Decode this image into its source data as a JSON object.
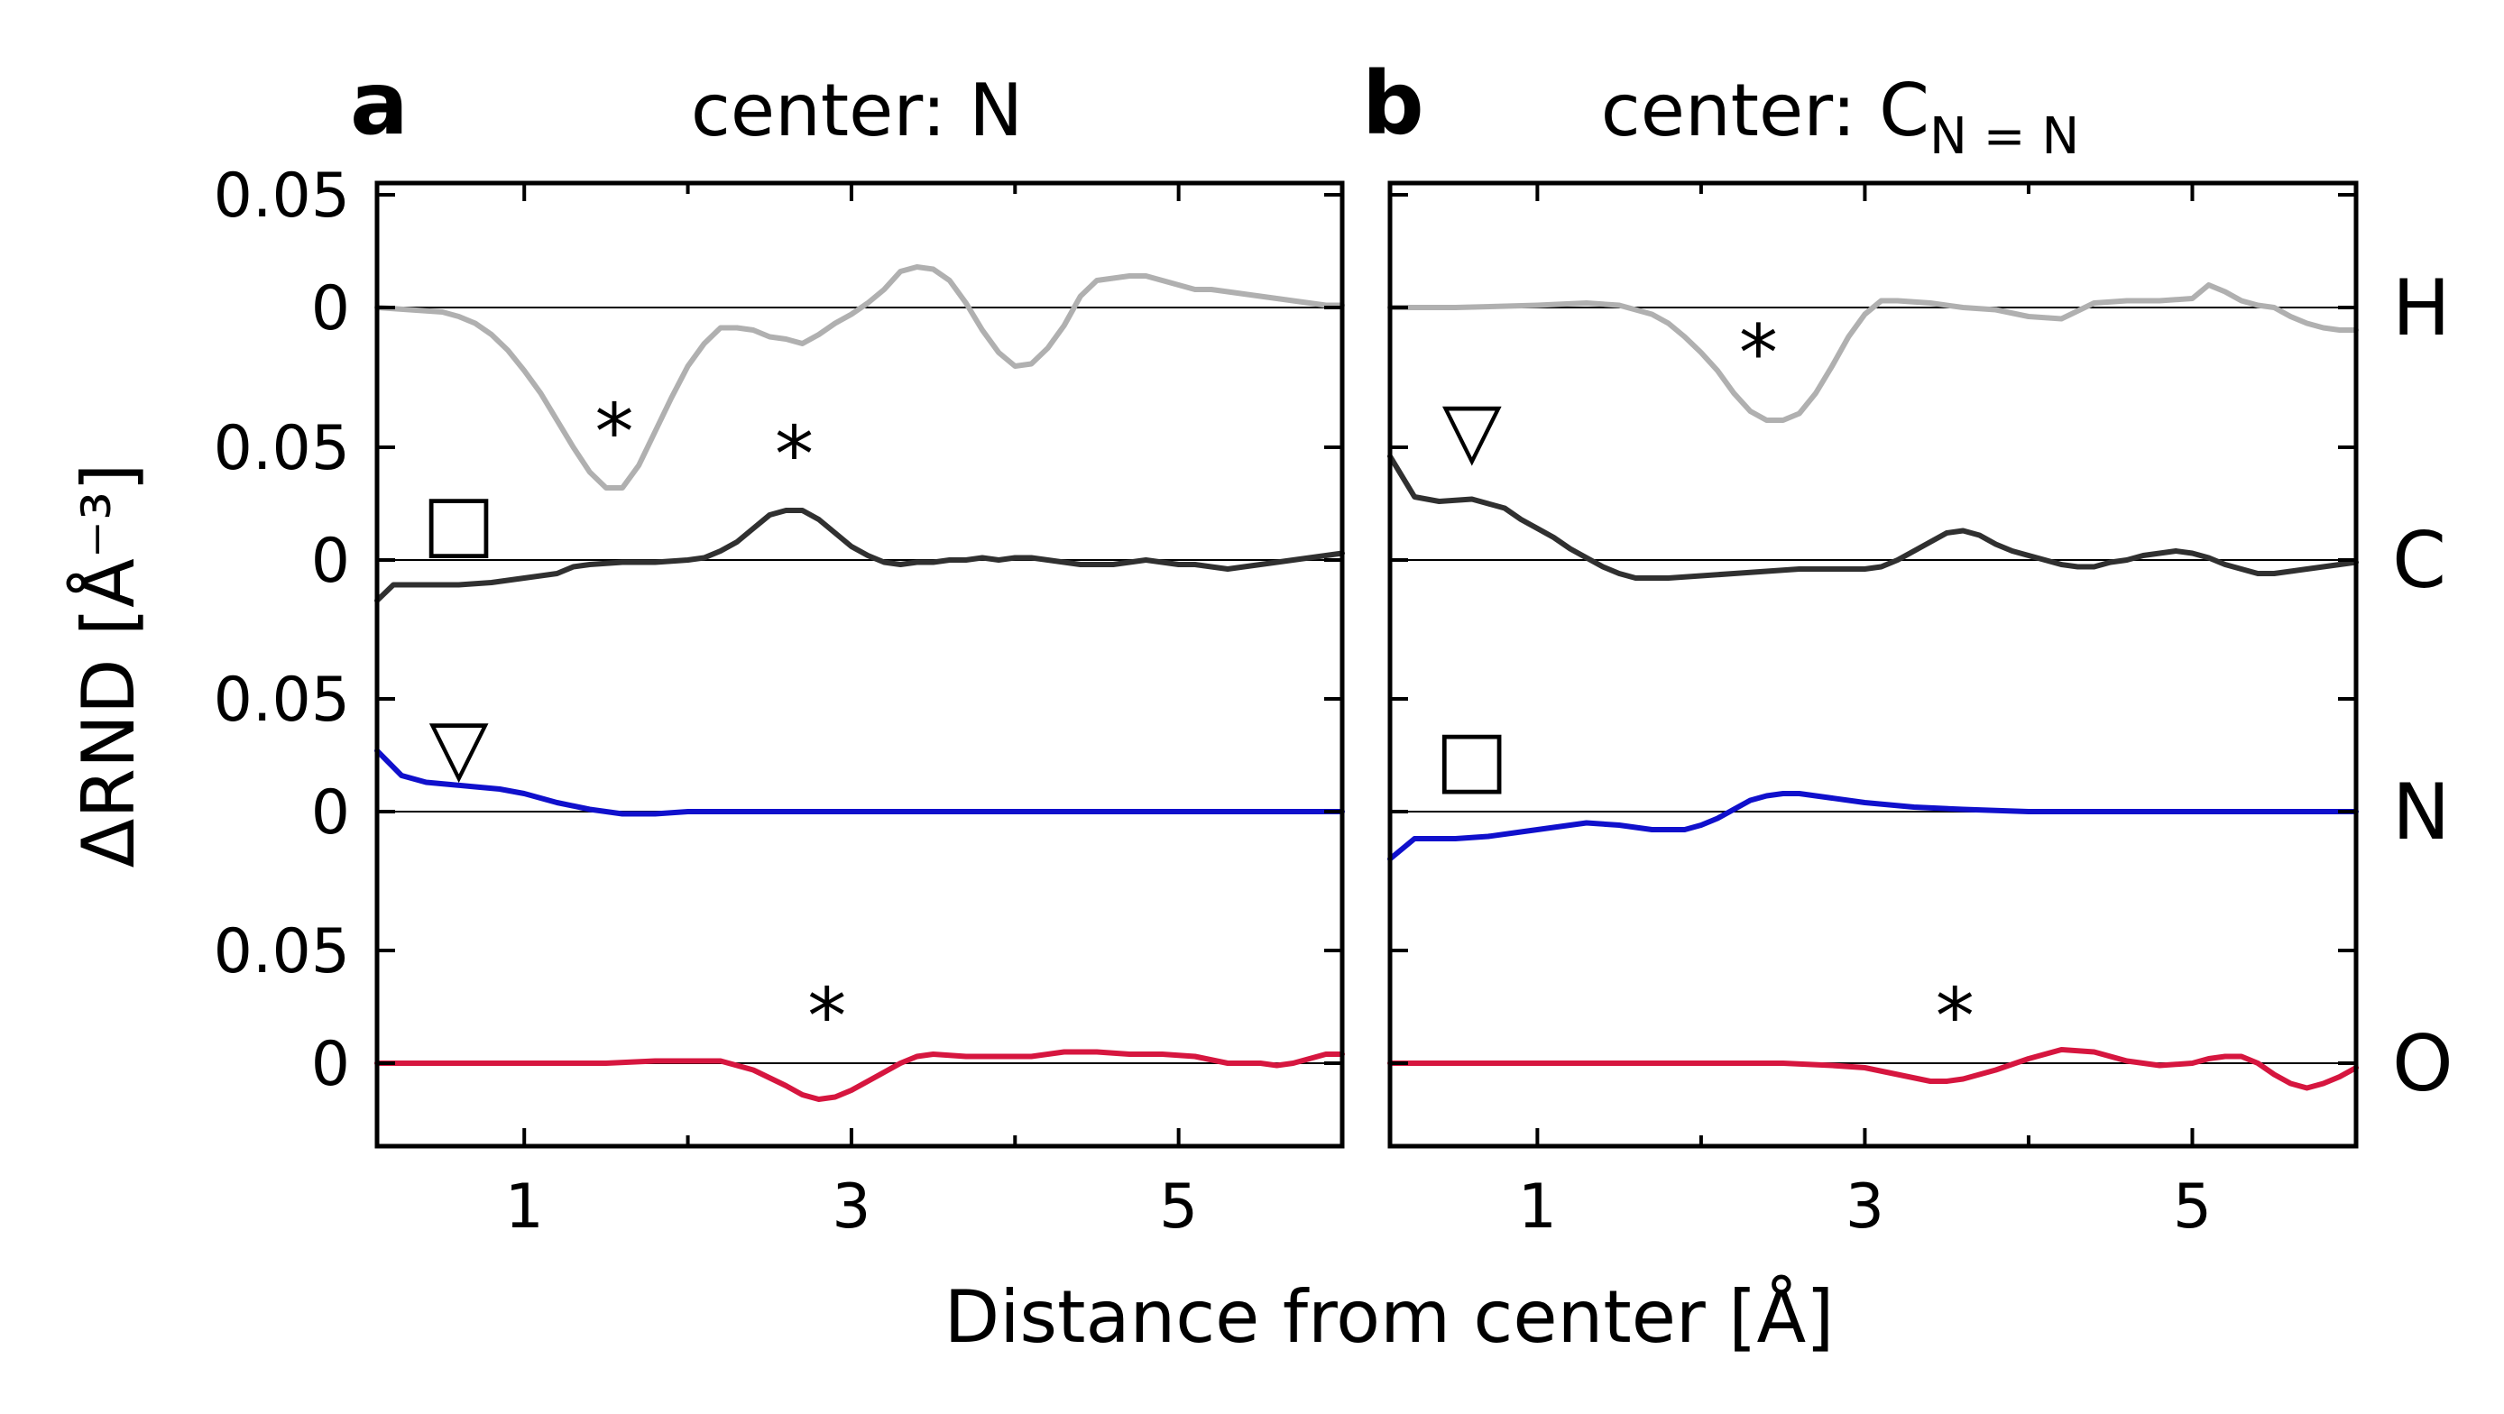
{
  "chart_data": {
    "type": "line",
    "xlabel": "Distance from center [Å]",
    "ylabel": "ΔRND [Å⁻³]",
    "xlim": [
      0.1,
      6.0
    ],
    "x_ticks": [
      1,
      3,
      5
    ],
    "x_tick_labels": [
      "1",
      "3",
      "5"
    ],
    "y_tick_labels": [
      "0.05",
      "0"
    ],
    "element_labels": [
      "H",
      "C",
      "N",
      "O"
    ],
    "grid": false,
    "panels": [
      {
        "letter": "a",
        "title": "center: N",
        "title_sub": "",
        "series": [
          {
            "element": "H",
            "color": "#b0b0b0",
            "x": [
              0.1,
              0.3,
              0.5,
              0.6,
              0.7,
              0.8,
              0.9,
              1.0,
              1.1,
              1.2,
              1.3,
              1.4,
              1.5,
              1.6,
              1.7,
              1.8,
              1.9,
              2.0,
              2.1,
              2.2,
              2.3,
              2.4,
              2.5,
              2.6,
              2.7,
              2.8,
              2.9,
              3.0,
              3.1,
              3.2,
              3.3,
              3.4,
              3.5,
              3.6,
              3.7,
              3.8,
              3.9,
              4.0,
              4.1,
              4.2,
              4.3,
              4.4,
              4.5,
              4.6,
              4.7,
              4.8,
              4.9,
              5.0,
              5.1,
              5.2,
              5.3,
              5.4,
              5.5,
              5.6,
              5.7,
              5.8,
              5.9,
              6.0
            ],
            "y": [
              0.0,
              -0.001,
              -0.002,
              -0.004,
              -0.007,
              -0.012,
              -0.019,
              -0.028,
              -0.038,
              -0.05,
              -0.062,
              -0.073,
              -0.08,
              -0.08,
              -0.07,
              -0.055,
              -0.04,
              -0.026,
              -0.016,
              -0.009,
              -0.009,
              -0.01,
              -0.013,
              -0.014,
              -0.016,
              -0.012,
              -0.007,
              -0.003,
              0.002,
              0.008,
              0.016,
              0.018,
              0.017,
              0.012,
              0.002,
              -0.01,
              -0.02,
              -0.026,
              -0.025,
              -0.018,
              -0.008,
              0.005,
              0.012,
              0.013,
              0.014,
              0.014,
              0.012,
              0.01,
              0.008,
              0.008,
              0.007,
              0.006,
              0.005,
              0.004,
              0.003,
              0.002,
              0.001,
              0.001
            ]
          },
          {
            "element": "C",
            "color": "#303030",
            "x": [
              0.1,
              0.2,
              0.4,
              0.6,
              0.8,
              1.0,
              1.2,
              1.3,
              1.4,
              1.6,
              1.8,
              2.0,
              2.1,
              2.2,
              2.3,
              2.4,
              2.5,
              2.6,
              2.7,
              2.8,
              2.9,
              3.0,
              3.1,
              3.2,
              3.3,
              3.4,
              3.5,
              3.6,
              3.7,
              3.8,
              3.9,
              4.0,
              4.1,
              4.2,
              4.3,
              4.4,
              4.5,
              4.6,
              4.7,
              4.8,
              4.9,
              5.0,
              5.1,
              5.2,
              5.3,
              5.4,
              5.5,
              5.6,
              5.7,
              5.8,
              5.9,
              6.0
            ],
            "y": [
              -0.018,
              -0.011,
              -0.011,
              -0.011,
              -0.01,
              -0.008,
              -0.006,
              -0.003,
              -0.002,
              -0.001,
              -0.001,
              0.0,
              0.001,
              0.004,
              0.008,
              0.014,
              0.02,
              0.022,
              0.022,
              0.018,
              0.012,
              0.006,
              0.002,
              -0.001,
              -0.002,
              -0.001,
              -0.001,
              0.0,
              0.0,
              0.001,
              0.0,
              0.001,
              0.001,
              0.0,
              -0.001,
              -0.002,
              -0.002,
              -0.002,
              -0.001,
              0.0,
              -0.001,
              -0.002,
              -0.002,
              -0.003,
              -0.004,
              -0.003,
              -0.002,
              -0.001,
              0.0,
              0.001,
              0.002,
              0.003
            ]
          },
          {
            "element": "N",
            "color": "#1010cc",
            "x": [
              0.1,
              0.25,
              0.4,
              0.55,
              0.7,
              0.85,
              1.0,
              1.2,
              1.4,
              1.6,
              1.8,
              2.0,
              2.3,
              2.6,
              3.0,
              3.5,
              4.0,
              4.5,
              5.0,
              5.5,
              6.0
            ],
            "y": [
              0.027,
              0.016,
              0.013,
              0.012,
              0.011,
              0.01,
              0.008,
              0.004,
              0.001,
              -0.001,
              -0.001,
              0.0,
              0.0,
              0.0,
              0.0,
              0.0,
              0.0,
              0.0,
              0.0,
              0.0,
              0.0
            ]
          },
          {
            "element": "O",
            "color": "#d6163f",
            "x": [
              0.1,
              0.5,
              1.0,
              1.5,
              1.8,
              2.0,
              2.2,
              2.4,
              2.6,
              2.7,
              2.8,
              2.9,
              3.0,
              3.1,
              3.2,
              3.3,
              3.4,
              3.5,
              3.7,
              3.9,
              4.1,
              4.3,
              4.5,
              4.7,
              4.9,
              5.1,
              5.3,
              5.5,
              5.6,
              5.7,
              5.8,
              5.9,
              6.0
            ],
            "y": [
              0.0,
              0.0,
              0.0,
              0.0,
              0.001,
              0.001,
              0.001,
              -0.003,
              -0.01,
              -0.014,
              -0.016,
              -0.015,
              -0.012,
              -0.008,
              -0.004,
              0.0,
              0.003,
              0.004,
              0.003,
              0.003,
              0.003,
              0.005,
              0.005,
              0.004,
              0.004,
              0.003,
              0.0,
              0.0,
              -0.001,
              0.0,
              0.002,
              0.004,
              0.004
            ]
          }
        ],
        "markers": [
          {
            "symbol": "*",
            "x": 1.55,
            "y": -0.055,
            "row": "H"
          },
          {
            "symbol": "*",
            "x": 2.65,
            "y": -0.065,
            "row": "H"
          },
          {
            "symbol": "□",
            "x": 0.6,
            "y": 0.017,
            "row": "C"
          },
          {
            "symbol": "▽",
            "x": 0.6,
            "y": 0.029,
            "row": "N"
          },
          {
            "symbol": "*",
            "x": 2.85,
            "y": 0.021,
            "row": "O"
          }
        ]
      },
      {
        "letter": "b",
        "title": "center: C",
        "title_sub": "N = N",
        "series": [
          {
            "element": "H",
            "color": "#b0b0b0",
            "x": [
              0.1,
              0.5,
              1.0,
              1.3,
              1.5,
              1.6,
              1.7,
              1.8,
              1.9,
              2.0,
              2.1,
              2.2,
              2.3,
              2.4,
              2.5,
              2.6,
              2.7,
              2.8,
              2.9,
              3.0,
              3.1,
              3.2,
              3.4,
              3.6,
              3.8,
              4.0,
              4.2,
              4.4,
              4.6,
              4.8,
              5.0,
              5.1,
              5.2,
              5.3,
              5.4,
              5.5,
              5.6,
              5.7,
              5.8,
              5.9,
              6.0
            ],
            "y": [
              0.0,
              0.0,
              0.001,
              0.002,
              0.001,
              -0.001,
              -0.003,
              -0.007,
              -0.013,
              -0.02,
              -0.028,
              -0.038,
              -0.046,
              -0.05,
              -0.05,
              -0.047,
              -0.038,
              -0.026,
              -0.013,
              -0.003,
              0.003,
              0.003,
              0.002,
              0.0,
              -0.001,
              -0.004,
              -0.005,
              0.002,
              0.003,
              0.003,
              0.004,
              0.01,
              0.007,
              0.003,
              0.001,
              0.0,
              -0.004,
              -0.007,
              -0.009,
              -0.01,
              -0.01
            ]
          },
          {
            "element": "C",
            "color": "#303030",
            "x": [
              0.1,
              0.25,
              0.4,
              0.6,
              0.7,
              0.8,
              0.9,
              1.0,
              1.1,
              1.2,
              1.3,
              1.4,
              1.5,
              1.6,
              1.8,
              2.0,
              2.2,
              2.4,
              2.6,
              2.8,
              3.0,
              3.1,
              3.2,
              3.3,
              3.4,
              3.5,
              3.6,
              3.7,
              3.8,
              3.9,
              4.0,
              4.1,
              4.2,
              4.3,
              4.4,
              4.5,
              4.6,
              4.7,
              4.8,
              4.9,
              5.0,
              5.1,
              5.2,
              5.3,
              5.4,
              5.5,
              5.6,
              5.7,
              5.8,
              5.9,
              6.0
            ],
            "y": [
              0.046,
              0.028,
              0.026,
              0.027,
              0.025,
              0.023,
              0.018,
              0.014,
              0.01,
              0.005,
              0.001,
              -0.003,
              -0.006,
              -0.008,
              -0.008,
              -0.007,
              -0.006,
              -0.005,
              -0.004,
              -0.004,
              -0.004,
              -0.003,
              0.0,
              0.004,
              0.008,
              0.012,
              0.013,
              0.011,
              0.007,
              0.004,
              0.002,
              0.0,
              -0.002,
              -0.003,
              -0.003,
              -0.001,
              0.0,
              0.002,
              0.003,
              0.004,
              0.003,
              0.001,
              -0.002,
              -0.004,
              -0.006,
              -0.006,
              -0.005,
              -0.004,
              -0.003,
              -0.002,
              -0.001
            ]
          },
          {
            "element": "N",
            "color": "#1010cc",
            "x": [
              0.1,
              0.25,
              0.5,
              0.7,
              0.9,
              1.1,
              1.3,
              1.5,
              1.7,
              1.9,
              2.0,
              2.1,
              2.2,
              2.3,
              2.4,
              2.5,
              2.6,
              2.8,
              3.0,
              3.3,
              3.6,
              4.0,
              4.5,
              5.0,
              5.5,
              6.0
            ],
            "y": [
              -0.021,
              -0.012,
              -0.012,
              -0.011,
              -0.009,
              -0.007,
              -0.005,
              -0.006,
              -0.008,
              -0.008,
              -0.006,
              -0.003,
              0.001,
              0.005,
              0.007,
              0.008,
              0.008,
              0.006,
              0.004,
              0.002,
              0.001,
              0.0,
              0.0,
              0.0,
              0.0,
              0.0
            ]
          },
          {
            "element": "O",
            "color": "#d6163f",
            "x": [
              0.1,
              0.5,
              1.0,
              1.5,
              2.0,
              2.5,
              2.8,
              3.0,
              3.2,
              3.4,
              3.5,
              3.6,
              3.8,
              4.0,
              4.2,
              4.4,
              4.6,
              4.8,
              5.0,
              5.1,
              5.2,
              5.3,
              5.4,
              5.5,
              5.6,
              5.7,
              5.8,
              5.9,
              6.0
            ],
            "y": [
              0.0,
              0.0,
              0.0,
              0.0,
              0.0,
              0.0,
              -0.001,
              -0.002,
              -0.005,
              -0.008,
              -0.008,
              -0.007,
              -0.003,
              0.002,
              0.006,
              0.005,
              0.001,
              -0.001,
              0.0,
              0.002,
              0.003,
              0.003,
              0.0,
              -0.005,
              -0.009,
              -0.011,
              -0.009,
              -0.006,
              -0.002
            ]
          }
        ],
        "markers": [
          {
            "symbol": "*",
            "x": 2.35,
            "y": -0.02,
            "row": "H"
          },
          {
            "symbol": "▽",
            "x": 0.6,
            "y": 0.058,
            "row": "C"
          },
          {
            "symbol": "□",
            "x": 0.6,
            "y": 0.024,
            "row": "N"
          },
          {
            "symbol": "*",
            "x": 3.55,
            "y": 0.021,
            "row": "O"
          }
        ]
      }
    ]
  }
}
